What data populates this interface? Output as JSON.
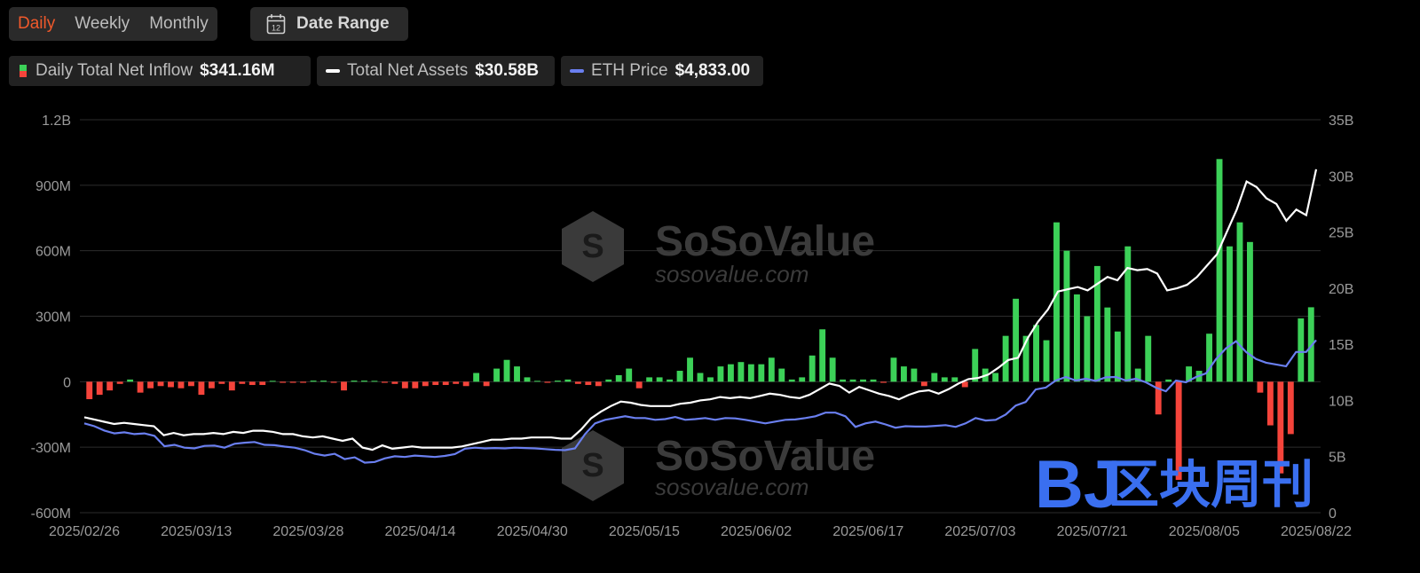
{
  "controls": {
    "tabs": [
      {
        "label": "Daily",
        "active": true
      },
      {
        "label": "Weekly",
        "active": false
      },
      {
        "label": "Monthly",
        "active": false
      }
    ],
    "date_range_label": "Date Range",
    "calendar_icon_number": "12"
  },
  "legend": [
    {
      "name": "Daily Total Net Inflow",
      "value": "$341.16M",
      "icon": "green-red-square"
    },
    {
      "name": "Total Net Assets",
      "value": "$30.58B",
      "icon": "white-line"
    },
    {
      "name": "ETH Price",
      "value": "$4,833.00",
      "icon": "blue-line"
    }
  ],
  "watermark": {
    "brand": "SoSoValue",
    "url": "sosovalue.com",
    "overlay_latin": "BJ",
    "overlay_cjk": "区块周刊"
  },
  "colors": {
    "positive": "#3cd158",
    "negative": "#f5443b",
    "assets_line": "#ffffff",
    "price_line": "#6a7ff0",
    "grid": "#2c2c2c"
  },
  "chart_data": {
    "type": "bar",
    "x_ticks": [
      "2025/02/26",
      "2025/03/13",
      "2025/03/28",
      "2025/04/14",
      "2025/04/30",
      "2025/05/15",
      "2025/06/02",
      "2025/06/17",
      "2025/07/03",
      "2025/07/21",
      "2025/08/05",
      "2025/08/22"
    ],
    "y_left": {
      "ticks": [
        "1.2B",
        "900M",
        "600M",
        "300M",
        "0",
        "-300M",
        "-600M"
      ],
      "range": [
        -600,
        1200
      ],
      "unit": "M USD"
    },
    "y_right": {
      "ticks": [
        "35B",
        "30B",
        "25B",
        "20B",
        "15B",
        "10B",
        "5B",
        "0"
      ],
      "range": [
        0,
        35
      ],
      "unit": "B USD"
    },
    "grid": true,
    "legend_position": "top-left",
    "series": [
      {
        "name": "Daily Total Net Inflow",
        "kind": "bar",
        "unit": "M",
        "values": [
          -80,
          -60,
          -40,
          -10,
          10,
          -50,
          -30,
          -20,
          -25,
          -30,
          -20,
          -60,
          -30,
          -10,
          -40,
          -10,
          -15,
          -15,
          0,
          -5,
          -5,
          -5,
          5,
          5,
          -5,
          -40,
          5,
          5,
          0,
          -5,
          -10,
          -30,
          -30,
          -20,
          -15,
          -15,
          -10,
          -20,
          40,
          -20,
          60,
          100,
          70,
          20,
          0,
          -5,
          5,
          10,
          -10,
          -15,
          -20,
          10,
          30,
          60,
          -30,
          20,
          20,
          10,
          50,
          110,
          40,
          20,
          70,
          80,
          90,
          80,
          80,
          110,
          60,
          10,
          20,
          120,
          240,
          110,
          10,
          10,
          10,
          10,
          -5,
          110,
          70,
          60,
          -20,
          40,
          20,
          20,
          -25,
          150,
          60,
          40,
          210,
          380,
          210,
          260,
          190,
          730,
          600,
          400,
          300,
          530,
          340,
          230,
          620,
          60,
          210,
          -150,
          10,
          -450,
          70,
          50,
          220,
          1020,
          620,
          730,
          640,
          -50,
          -200,
          -420,
          -240,
          290,
          341
        ]
      },
      {
        "name": "Total Net Assets",
        "kind": "line",
        "axis": "right",
        "unit": "B",
        "values": [
          8.5,
          8.3,
          8.1,
          7.9,
          8.0,
          7.9,
          7.8,
          7.7,
          6.9,
          7.1,
          6.9,
          7.0,
          7.0,
          7.1,
          7.0,
          7.2,
          7.1,
          7.3,
          7.3,
          7.2,
          7.0,
          7.0,
          6.8,
          6.7,
          6.8,
          6.6,
          6.4,
          6.6,
          5.8,
          5.6,
          6.0,
          5.7,
          5.8,
          5.9,
          5.8,
          5.8,
          5.8,
          5.8,
          5.9,
          6.1,
          6.3,
          6.5,
          6.5,
          6.6,
          6.6,
          6.7,
          6.7,
          6.7,
          6.6,
          6.6,
          7.4,
          8.4,
          9.0,
          9.5,
          9.9,
          9.8,
          9.6,
          9.5,
          9.5,
          9.5,
          9.7,
          9.8,
          10.0,
          10.1,
          10.3,
          10.2,
          10.3,
          10.2,
          10.4,
          10.6,
          10.5,
          10.3,
          10.2,
          10.5,
          11.0,
          11.5,
          11.3,
          10.7,
          11.2,
          10.9,
          10.6,
          10.4,
          10.1,
          10.5,
          10.8,
          10.9,
          10.6,
          11.0,
          11.5,
          11.9,
          12.0,
          12.3,
          12.9,
          13.6,
          13.8,
          15.6,
          17.0,
          18.1,
          19.7,
          19.9,
          20.1,
          19.8,
          20.4,
          21.0,
          20.7,
          21.8,
          21.6,
          21.7,
          21.3,
          19.8,
          20.0,
          20.3,
          21.0,
          22.0,
          23.0,
          25.0,
          27.0,
          29.5,
          29.0,
          28.0,
          27.5,
          26.0,
          27.0,
          26.5,
          30.58
        ]
      },
      {
        "name": "ETH Price",
        "kind": "line",
        "axis": "right",
        "unit": "USD",
        "values": [
          2500,
          2420,
          2300,
          2220,
          2250,
          2200,
          2220,
          2150,
          1860,
          1900,
          1820,
          1800,
          1870,
          1880,
          1820,
          1930,
          1960,
          1980,
          1900,
          1890,
          1850,
          1820,
          1750,
          1650,
          1600,
          1650,
          1500,
          1550,
          1400,
          1420,
          1520,
          1580,
          1560,
          1600,
          1580,
          1560,
          1590,
          1640,
          1790,
          1820,
          1800,
          1810,
          1800,
          1820,
          1810,
          1800,
          1780,
          1760,
          1750,
          1800,
          2200,
          2500,
          2600,
          2650,
          2700,
          2650,
          2650,
          2600,
          2620,
          2680,
          2600,
          2620,
          2650,
          2600,
          2650,
          2640,
          2600,
          2550,
          2500,
          2550,
          2600,
          2610,
          2650,
          2700,
          2800,
          2800,
          2700,
          2400,
          2500,
          2550,
          2470,
          2380,
          2420,
          2410,
          2410,
          2430,
          2450,
          2400,
          2500,
          2650,
          2580,
          2600,
          2750,
          3000,
          3100,
          3450,
          3500,
          3700,
          3800,
          3700,
          3750,
          3690,
          3790,
          3800,
          3700,
          3750,
          3650,
          3500,
          3400,
          3700,
          3650,
          3800,
          3900,
          4300,
          4600,
          4800,
          4500,
          4300,
          4200,
          4150,
          4100,
          4500,
          4500,
          4833
        ]
      }
    ]
  }
}
